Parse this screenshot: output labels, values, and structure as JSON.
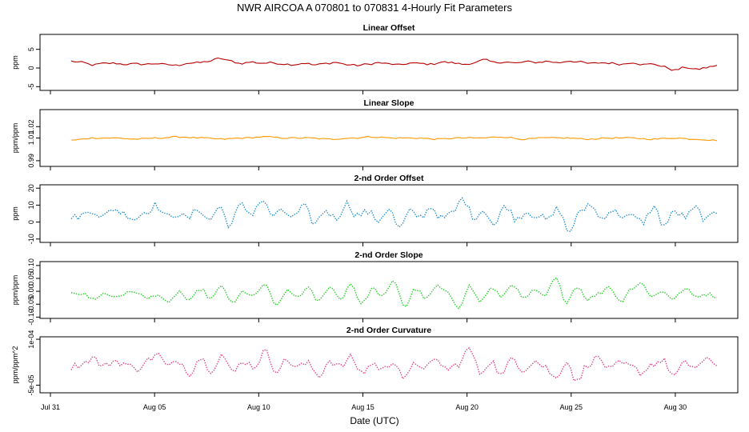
{
  "figure": {
    "title": "NWR   AIRCOA A   070801 to 070831   4-Hourly Fit Parameters",
    "xlabel": "Date (UTC)",
    "x_ticks": [
      "Jul 31",
      "Aug 05",
      "Aug 10",
      "Aug 15",
      "Aug 20",
      "Aug 25",
      "Aug 30"
    ],
    "x_tick_days": [
      0,
      5,
      10,
      15,
      20,
      25,
      30
    ],
    "x_range_days": [
      -0.5,
      33
    ]
  },
  "colors": {
    "linear_offset": "#b30000",
    "linear_slope": "#ff9900",
    "second_offset": "#1e90d0",
    "second_slope": "#22cc22",
    "curvature": "#e0408a"
  },
  "chart_data": [
    {
      "type": "line",
      "title": "Linear Offset",
      "ylabel": "ppm",
      "ylim": [
        -6,
        9
      ],
      "yticks": [
        -5,
        0,
        5
      ],
      "ytick_labels": [
        "-5",
        "0",
        "5"
      ],
      "line_style": "solid",
      "color_key": "linear_offset",
      "x_start_day": 1.0,
      "x_end_day": 32.0,
      "y_knots": [
        1.8,
        1.5,
        0.8,
        1.2,
        1.3,
        1.0,
        1.1,
        1.0,
        1.2,
        0.9,
        0.7,
        1.3,
        1.4,
        1.8,
        2.6,
        1.9,
        1.2,
        1.6,
        1.3,
        1.4,
        1.1,
        0.9,
        1.3,
        0.8,
        1.2,
        1.5,
        0.9,
        0.7,
        1.0,
        1.4,
        1.1,
        0.8,
        1.3,
        1.2,
        1.0,
        1.6,
        1.4,
        1.0,
        1.3,
        2.2,
        1.5,
        1.6,
        1.3,
        1.7,
        1.5,
        1.8,
        1.4,
        1.9,
        1.6,
        1.2,
        1.4,
        1.3,
        1.0,
        1.5,
        0.9,
        1.1,
        0.3,
        -0.6,
        0.2,
        -0.4,
        0.1,
        0.7
      ],
      "noise": 0.25
    },
    {
      "type": "line",
      "title": "Linear Slope",
      "ylabel": "ppm/ppm",
      "ylim": [
        0.985,
        1.035
      ],
      "yticks": [
        0.99,
        1.01,
        1.02
      ],
      "ytick_labels": [
        "0.99",
        "1.01",
        "1.02"
      ],
      "line_style": "solid",
      "color_key": "linear_slope",
      "x_start_day": 1.0,
      "x_end_day": 32.0,
      "y_knots": [
        1.008,
        1.01,
        1.01,
        1.009,
        1.01,
        1.011,
        1.01,
        1.009,
        1.01,
        1.011,
        1.01,
        1.01,
        1.009,
        1.01,
        1.011,
        1.01,
        1.01,
        1.009,
        1.01,
        1.01,
        1.011,
        1.009,
        1.01,
        1.01,
        1.009,
        1.01,
        1.01,
        1.009,
        1.01,
        1.009,
        1.008
      ],
      "noise": 0.0006
    },
    {
      "type": "line",
      "title": "2-nd Order Offset",
      "ylabel": "ppm",
      "ylim": [
        -12,
        22
      ],
      "yticks": [
        -10,
        0,
        10,
        20
      ],
      "ytick_labels": [
        "-10",
        "0",
        "10",
        "20"
      ],
      "line_style": "dotted",
      "color_key": "second_offset",
      "x_start_day": 1.0,
      "x_end_day": 32.0,
      "y_knots": [
        2,
        4,
        7,
        3,
        8,
        5,
        2,
        6,
        10,
        3,
        5,
        2,
        8,
        1,
        9,
        -2,
        10,
        5,
        13,
        4,
        6,
        3,
        9,
        -1,
        7,
        2,
        11,
        4,
        6,
        1,
        8,
        -4,
        6,
        3,
        9,
        2,
        5,
        14,
        3,
        7,
        -2,
        10,
        2,
        6,
        4,
        1,
        8,
        -6,
        5,
        11,
        2,
        7,
        4,
        3,
        0,
        9,
        -2,
        6,
        3,
        8,
        1,
        6
      ],
      "noise": 2.2
    },
    {
      "type": "line",
      "title": "2-nd Order Slope",
      "ylabel": "ppm/ppm",
      "ylim": [
        -0.105,
        0.115
      ],
      "yticks": [
        -0.1,
        -0.05,
        0.0,
        0.05,
        0.1
      ],
      "ytick_labels": [
        "-0.10",
        "-0.05",
        "0.00",
        "0.05",
        "0.10"
      ],
      "line_style": "dotted",
      "color_key": "second_slope",
      "x_start_day": 1.0,
      "x_end_day": 32.0,
      "y_knots": [
        0.0,
        -0.01,
        -0.03,
        -0.01,
        -0.02,
        -0.01,
        0.0,
        -0.03,
        -0.01,
        -0.05,
        0.0,
        -0.04,
        0.01,
        -0.03,
        0.02,
        -0.05,
        0.0,
        -0.02,
        0.03,
        -0.06,
        0.0,
        -0.02,
        0.01,
        -0.04,
        0.02,
        -0.03,
        0.03,
        -0.05,
        0.01,
        -0.02,
        0.04,
        -0.06,
        0.01,
        -0.03,
        0.02,
        -0.01,
        -0.06,
        0.02,
        -0.04,
        0.01,
        -0.02,
        0.03,
        -0.03,
        0.0,
        -0.02,
        0.05,
        -0.04,
        0.02,
        -0.03,
        -0.01,
        0.02,
        -0.04,
        0.01,
        0.03,
        -0.02,
        0.0,
        -0.03,
        0.01,
        -0.02,
        -0.01,
        -0.02
      ],
      "noise": 0.008
    },
    {
      "type": "line",
      "title": "2-nd Order Curvature",
      "ylabel": "ppm/ppm^2",
      "ylim": [
        -7.5e-05,
        0.000108
      ],
      "yticks": [
        -5e-05,
        0.0001
      ],
      "ytick_labels": [
        "-5e-05",
        "1e-04"
      ],
      "line_style": "dotted",
      "color_key": "curvature",
      "x_start_day": 1.0,
      "x_end_day": 32.0,
      "y_knots": [
        1e-05,
        2e-05,
        4e-05,
        1e-05,
        3e-05,
        2e-05,
        0.0,
        3e-05,
        5e-05,
        1e-05,
        3e-05,
        -1e-05,
        4e-05,
        0.0,
        5e-05,
        -1e-05,
        3e-05,
        1e-05,
        6e-05,
        0.0,
        3e-05,
        1e-05,
        2e-05,
        -2e-05,
        3e-05,
        1e-05,
        4e-05,
        -1e-05,
        2e-05,
        0.0,
        3e-05,
        -3e-05,
        2e-05,
        1e-05,
        3e-05,
        0.0,
        2e-05,
        7e-05,
        -1e-05,
        3e-05,
        -2e-05,
        4e-05,
        0.0,
        3e-05,
        1e-05,
        -3e-05,
        3e-05,
        -4e-05,
        2e-05,
        4e-05,
        0.0,
        2e-05,
        1e-05,
        -1e-05,
        2e-05,
        3e-05,
        -2e-05,
        2e-05,
        1e-05,
        3e-05,
        2e-05
      ],
      "noise": 1.2e-05
    }
  ]
}
